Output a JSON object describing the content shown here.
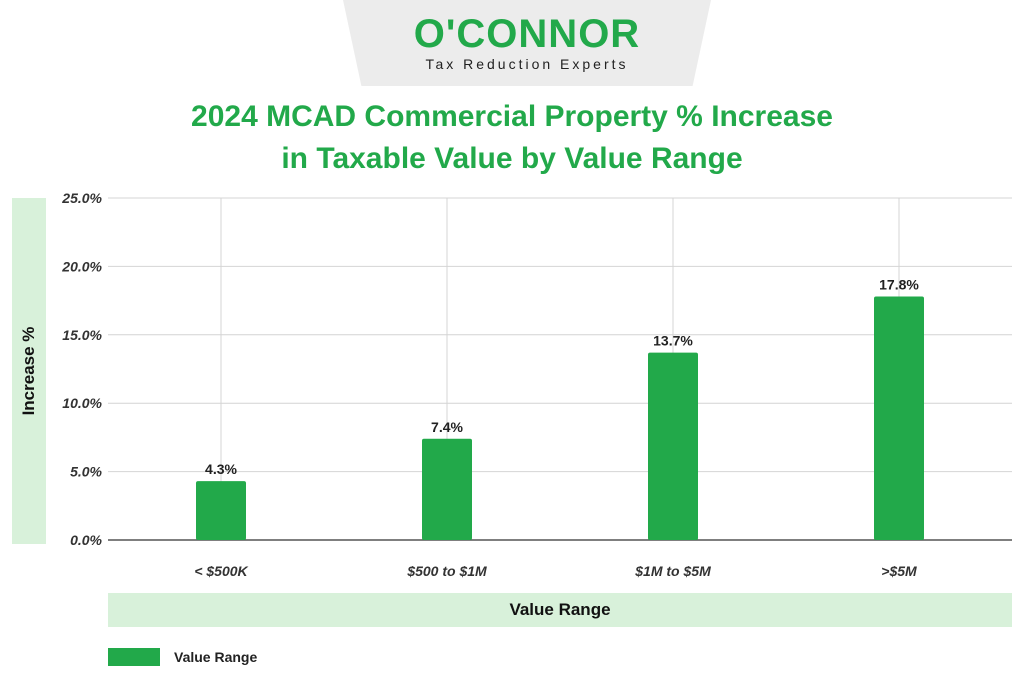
{
  "logo": {
    "name": "O'CONNOR",
    "tagline": "Tax Reduction Experts"
  },
  "chart_data": {
    "type": "bar",
    "title_line1": "2024 MCAD Commercial Property % Increase",
    "title_line2": "in Taxable Value by Value Range",
    "xlabel": "Value Range",
    "ylabel": "Increase %",
    "categories": [
      "< $500K",
      "$500 to $1M",
      "$1M to $5M",
      ">$5M"
    ],
    "values": [
      4.3,
      7.4,
      13.7,
      17.8
    ],
    "value_labels": [
      "4.3%",
      "7.4%",
      "13.7%",
      "17.8%"
    ],
    "ylim": [
      0,
      25
    ],
    "yticks": [
      0,
      5,
      10,
      15,
      20,
      25
    ],
    "ytick_labels": [
      "0.0%",
      "5.0%",
      "10.0%",
      "15.0%",
      "20.0%",
      "25.0%"
    ],
    "legend": [
      "Value Range"
    ],
    "legend_position": "bottom-left",
    "grid": true,
    "bar_color": "#22a94a"
  }
}
